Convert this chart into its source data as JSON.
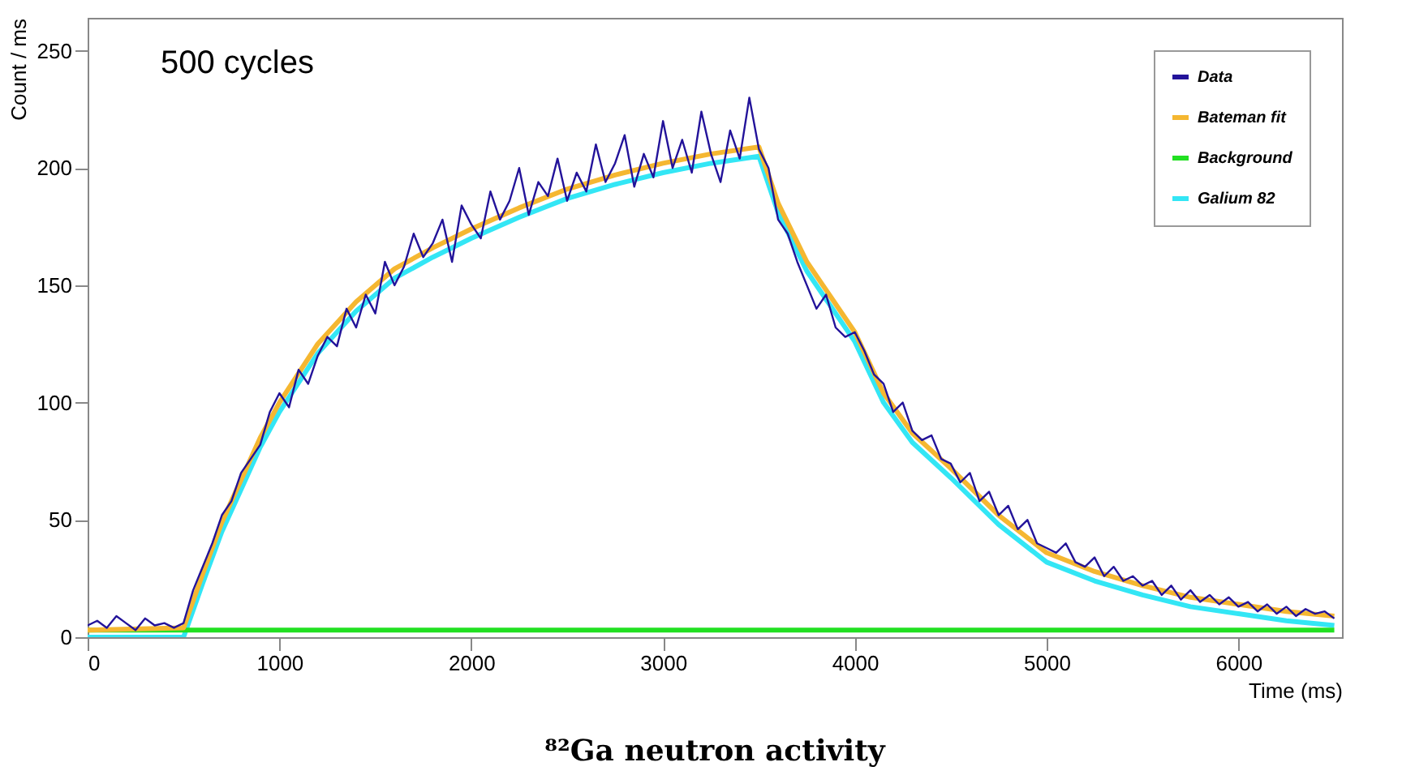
{
  "chart_data": {
    "type": "line",
    "title": "⁸²Ga neutron activity",
    "xlabel": "Time (ms)",
    "ylabel": "Count / ms",
    "annotations": [
      "500 cycles"
    ],
    "xlim": [
      0,
      6540
    ],
    "ylim": [
      0,
      264
    ],
    "xticks": [
      0,
      1000,
      2000,
      3000,
      4000,
      5000,
      6000
    ],
    "yticks": [
      0,
      50,
      100,
      150,
      200,
      250
    ],
    "legend": "top right",
    "grid": false,
    "marker": "none",
    "line_style": "solid",
    "series": [
      {
        "name": "Data",
        "color": "#23139a",
        "x": [
          0,
          50,
          100,
          150,
          200,
          250,
          300,
          350,
          400,
          450,
          500,
          550,
          600,
          650,
          700,
          750,
          800,
          850,
          900,
          950,
          1000,
          1050,
          1100,
          1150,
          1200,
          1250,
          1300,
          1350,
          1400,
          1450,
          1500,
          1550,
          1600,
          1650,
          1700,
          1750,
          1800,
          1850,
          1900,
          1950,
          2000,
          2050,
          2100,
          2150,
          2200,
          2250,
          2300,
          2350,
          2400,
          2450,
          2500,
          2550,
          2600,
          2650,
          2700,
          2750,
          2800,
          2850,
          2900,
          2950,
          3000,
          3050,
          3100,
          3150,
          3200,
          3250,
          3300,
          3350,
          3400,
          3450,
          3500,
          3550,
          3600,
          3650,
          3700,
          3750,
          3800,
          3850,
          3900,
          3950,
          4000,
          4050,
          4100,
          4150,
          4200,
          4250,
          4300,
          4350,
          4400,
          4450,
          4500,
          4550,
          4600,
          4650,
          4700,
          4750,
          4800,
          4850,
          4900,
          4950,
          5000,
          5050,
          5100,
          5150,
          5200,
          5250,
          5300,
          5350,
          5400,
          5450,
          5500,
          5550,
          5600,
          5650,
          5700,
          5750,
          5800,
          5850,
          5900,
          5950,
          6000,
          6050,
          6100,
          6150,
          6200,
          6250,
          6300,
          6350,
          6400,
          6450,
          6500
        ],
        "values": [
          5,
          7,
          4,
          9,
          6,
          3,
          8,
          5,
          6,
          4,
          6,
          20,
          30,
          40,
          52,
          58,
          70,
          76,
          82,
          96,
          104,
          98,
          114,
          108,
          120,
          128,
          124,
          140,
          132,
          146,
          138,
          160,
          150,
          158,
          172,
          162,
          168,
          178,
          160,
          184,
          176,
          170,
          190,
          178,
          186,
          200,
          180,
          194,
          188,
          204,
          186,
          198,
          190,
          210,
          194,
          202,
          214,
          192,
          206,
          196,
          220,
          200,
          212,
          198,
          224,
          206,
          194,
          216,
          204,
          230,
          208,
          200,
          178,
          172,
          160,
          150,
          140,
          146,
          132,
          128,
          130,
          122,
          112,
          108,
          96,
          100,
          88,
          84,
          86,
          76,
          74,
          66,
          70,
          58,
          62,
          52,
          56,
          46,
          50,
          40,
          38,
          36,
          40,
          32,
          30,
          34,
          26,
          30,
          24,
          26,
          22,
          24,
          18,
          22,
          16,
          20,
          15,
          18,
          14,
          17,
          13,
          15,
          11,
          14,
          10,
          13,
          9,
          12,
          10,
          11,
          8
        ]
      },
      {
        "name": "Bateman fit",
        "color": "#f5b731",
        "x": [
          0,
          500,
          600,
          700,
          800,
          900,
          1000,
          1200,
          1400,
          1600,
          1800,
          2000,
          2250,
          2500,
          2750,
          3000,
          3250,
          3500,
          3600,
          3750,
          4000,
          4150,
          4300,
          4500,
          4750,
          5000,
          5250,
          5500,
          5750,
          6000,
          6250,
          6500
        ],
        "values": [
          3,
          4,
          27,
          49,
          67,
          85,
          100,
          125,
          143,
          157,
          166,
          174,
          183,
          191,
          197,
          202,
          206,
          209,
          185,
          160,
          130,
          104,
          87,
          72,
          52,
          36,
          28,
          22,
          17,
          14,
          11,
          9
        ]
      },
      {
        "name": "Background",
        "color": "#22e022",
        "x": [
          0,
          6500
        ],
        "values": [
          3,
          3
        ]
      },
      {
        "name": "Galium 82",
        "color": "#33e6f5",
        "x": [
          0,
          500,
          600,
          700,
          800,
          900,
          1000,
          1200,
          1400,
          1600,
          1800,
          2000,
          2250,
          2500,
          2750,
          3000,
          3250,
          3500,
          3600,
          3750,
          4000,
          4150,
          4300,
          4500,
          4750,
          5000,
          5250,
          5500,
          5750,
          6000,
          6250,
          6500
        ],
        "values": [
          0,
          0,
          23,
          45,
          63,
          81,
          96,
          121,
          139,
          153,
          162,
          170,
          179,
          187,
          193,
          198,
          202,
          205,
          181,
          156,
          126,
          100,
          83,
          68,
          48,
          32,
          24,
          18,
          13,
          10,
          7,
          5
        ]
      }
    ]
  }
}
